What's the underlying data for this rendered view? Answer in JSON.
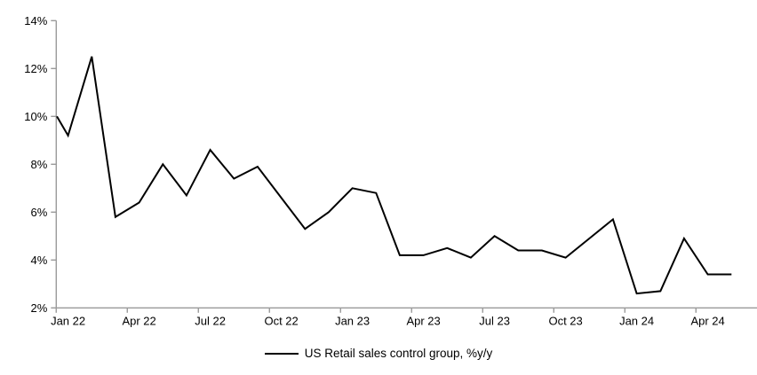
{
  "figure": {
    "background_color": "#ffffff",
    "series_line_color": "#000000",
    "axis_color": "#9a9a9a",
    "text_color": "#000000"
  },
  "legend": {
    "label": "US Retail sales control group, %y/y"
  },
  "chart_data": {
    "type": "line",
    "title": "",
    "xlabel": "",
    "ylabel": "",
    "grid": false,
    "legend_position": "bottom-center",
    "series_name": "US Retail sales control group, %y/y",
    "x": [
      "Jan 22",
      "Feb 22",
      "Mar 22",
      "Apr 22",
      "May 22",
      "Jun 22",
      "Jul 22",
      "Aug 22",
      "Sep 22",
      "Oct 22",
      "Nov 22",
      "Dec 22",
      "Jan 23",
      "Feb 23",
      "Mar 23",
      "Apr 23",
      "May 23",
      "Jun 23",
      "Jul 23",
      "Aug 23",
      "Sep 23",
      "Oct 23",
      "Nov 23",
      "Dec 23",
      "Jan 24",
      "Feb 24",
      "Mar 24",
      "Apr 24",
      "May 24"
    ],
    "values": [
      9.2,
      12.5,
      5.8,
      6.4,
      8.0,
      6.7,
      8.6,
      7.4,
      7.9,
      6.6,
      5.3,
      6.0,
      7.0,
      6.8,
      4.2,
      4.2,
      4.5,
      4.1,
      5.0,
      4.4,
      4.4,
      4.1,
      4.9,
      5.7,
      2.6,
      2.7,
      4.9,
      3.4,
      3.4
    ],
    "clipped_lead_in_value_at_left_edge": 10.0,
    "y_axis": {
      "min": 2,
      "max": 14,
      "tick_step": 2,
      "tick_labels": [
        "2%",
        "4%",
        "6%",
        "8%",
        "10%",
        "12%",
        "14%"
      ]
    },
    "x_axis": {
      "tick_labels": [
        "Jan 22",
        "Apr 22",
        "Jul 22",
        "Oct 22",
        "Jan 23",
        "Apr 23",
        "Jul 23",
        "Oct 23",
        "Jan 24",
        "Apr 24"
      ],
      "tick_label_month_indices": [
        0,
        3,
        6,
        9,
        12,
        15,
        18,
        21,
        24,
        27
      ],
      "ticks_at_category_boundaries": true
    }
  }
}
